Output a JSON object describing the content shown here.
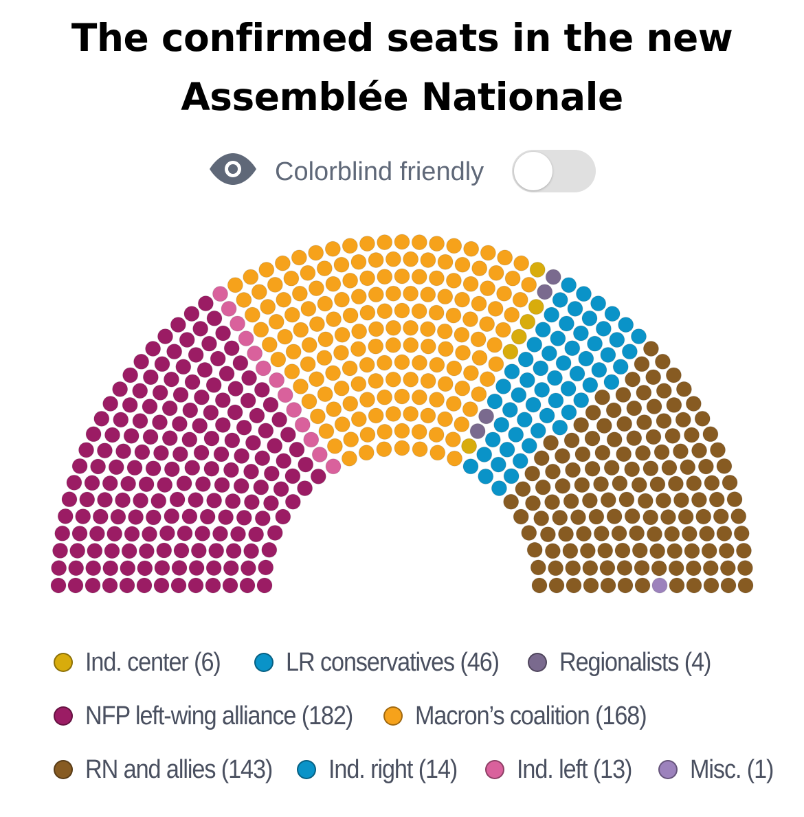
{
  "title": {
    "line1": "The confirmed seats in the new",
    "line2": "Assemblée Nationale"
  },
  "toggle": {
    "icon": "eye-icon",
    "label": "Colorblind friendly",
    "state": "off"
  },
  "chart_data": {
    "type": "parliament",
    "total_seats": 577,
    "order_left_to_right": [
      "NFP left-wing alliance",
      "Ind. left",
      "Macron's coalition",
      "Ind. center",
      "Regionalists",
      "LR conservatives",
      "Ind. right",
      "RN and allies",
      "Misc."
    ],
    "series": [
      {
        "name": "Ind. center",
        "value": 6,
        "color": "#d8ac0c"
      },
      {
        "name": "LR conservatives",
        "value": 46,
        "color": "#0a93c8"
      },
      {
        "name": "Regionalists",
        "value": 4,
        "color": "#7a6a8e"
      },
      {
        "name": "NFP left-wing alliance",
        "value": 182,
        "color": "#9b1c64"
      },
      {
        "name": "Macron's coalition",
        "value": 168,
        "color": "#f6a21b"
      },
      {
        "name": "RN and allies",
        "value": 143,
        "color": "#875b22"
      },
      {
        "name": "Ind. right",
        "value": 14,
        "color": "#0a93c8"
      },
      {
        "name": "Ind. left",
        "value": 13,
        "color": "#d9619c"
      },
      {
        "name": "Misc.",
        "value": 1,
        "color": "#9c82bc"
      }
    ]
  },
  "legend": [
    {
      "label": "Ind. center (6)",
      "color": "#d8ac0c"
    },
    {
      "label": "LR conservatives (46)",
      "color": "#0a93c8"
    },
    {
      "label": "Regionalists (4)",
      "color": "#7a6a8e"
    },
    {
      "label": "NFP left-wing alliance (182)",
      "color": "#9b1c64"
    },
    {
      "label": "Macron’s coalition (168)",
      "color": "#f6a21b"
    },
    {
      "label": "RN and allies (143)",
      "color": "#875b22"
    },
    {
      "label": "Ind. right (14)",
      "color": "#0a93c8"
    },
    {
      "label": "Ind. left (13)",
      "color": "#d9619c"
    },
    {
      "label": "Misc. (1)",
      "color": "#9c82bc"
    }
  ]
}
